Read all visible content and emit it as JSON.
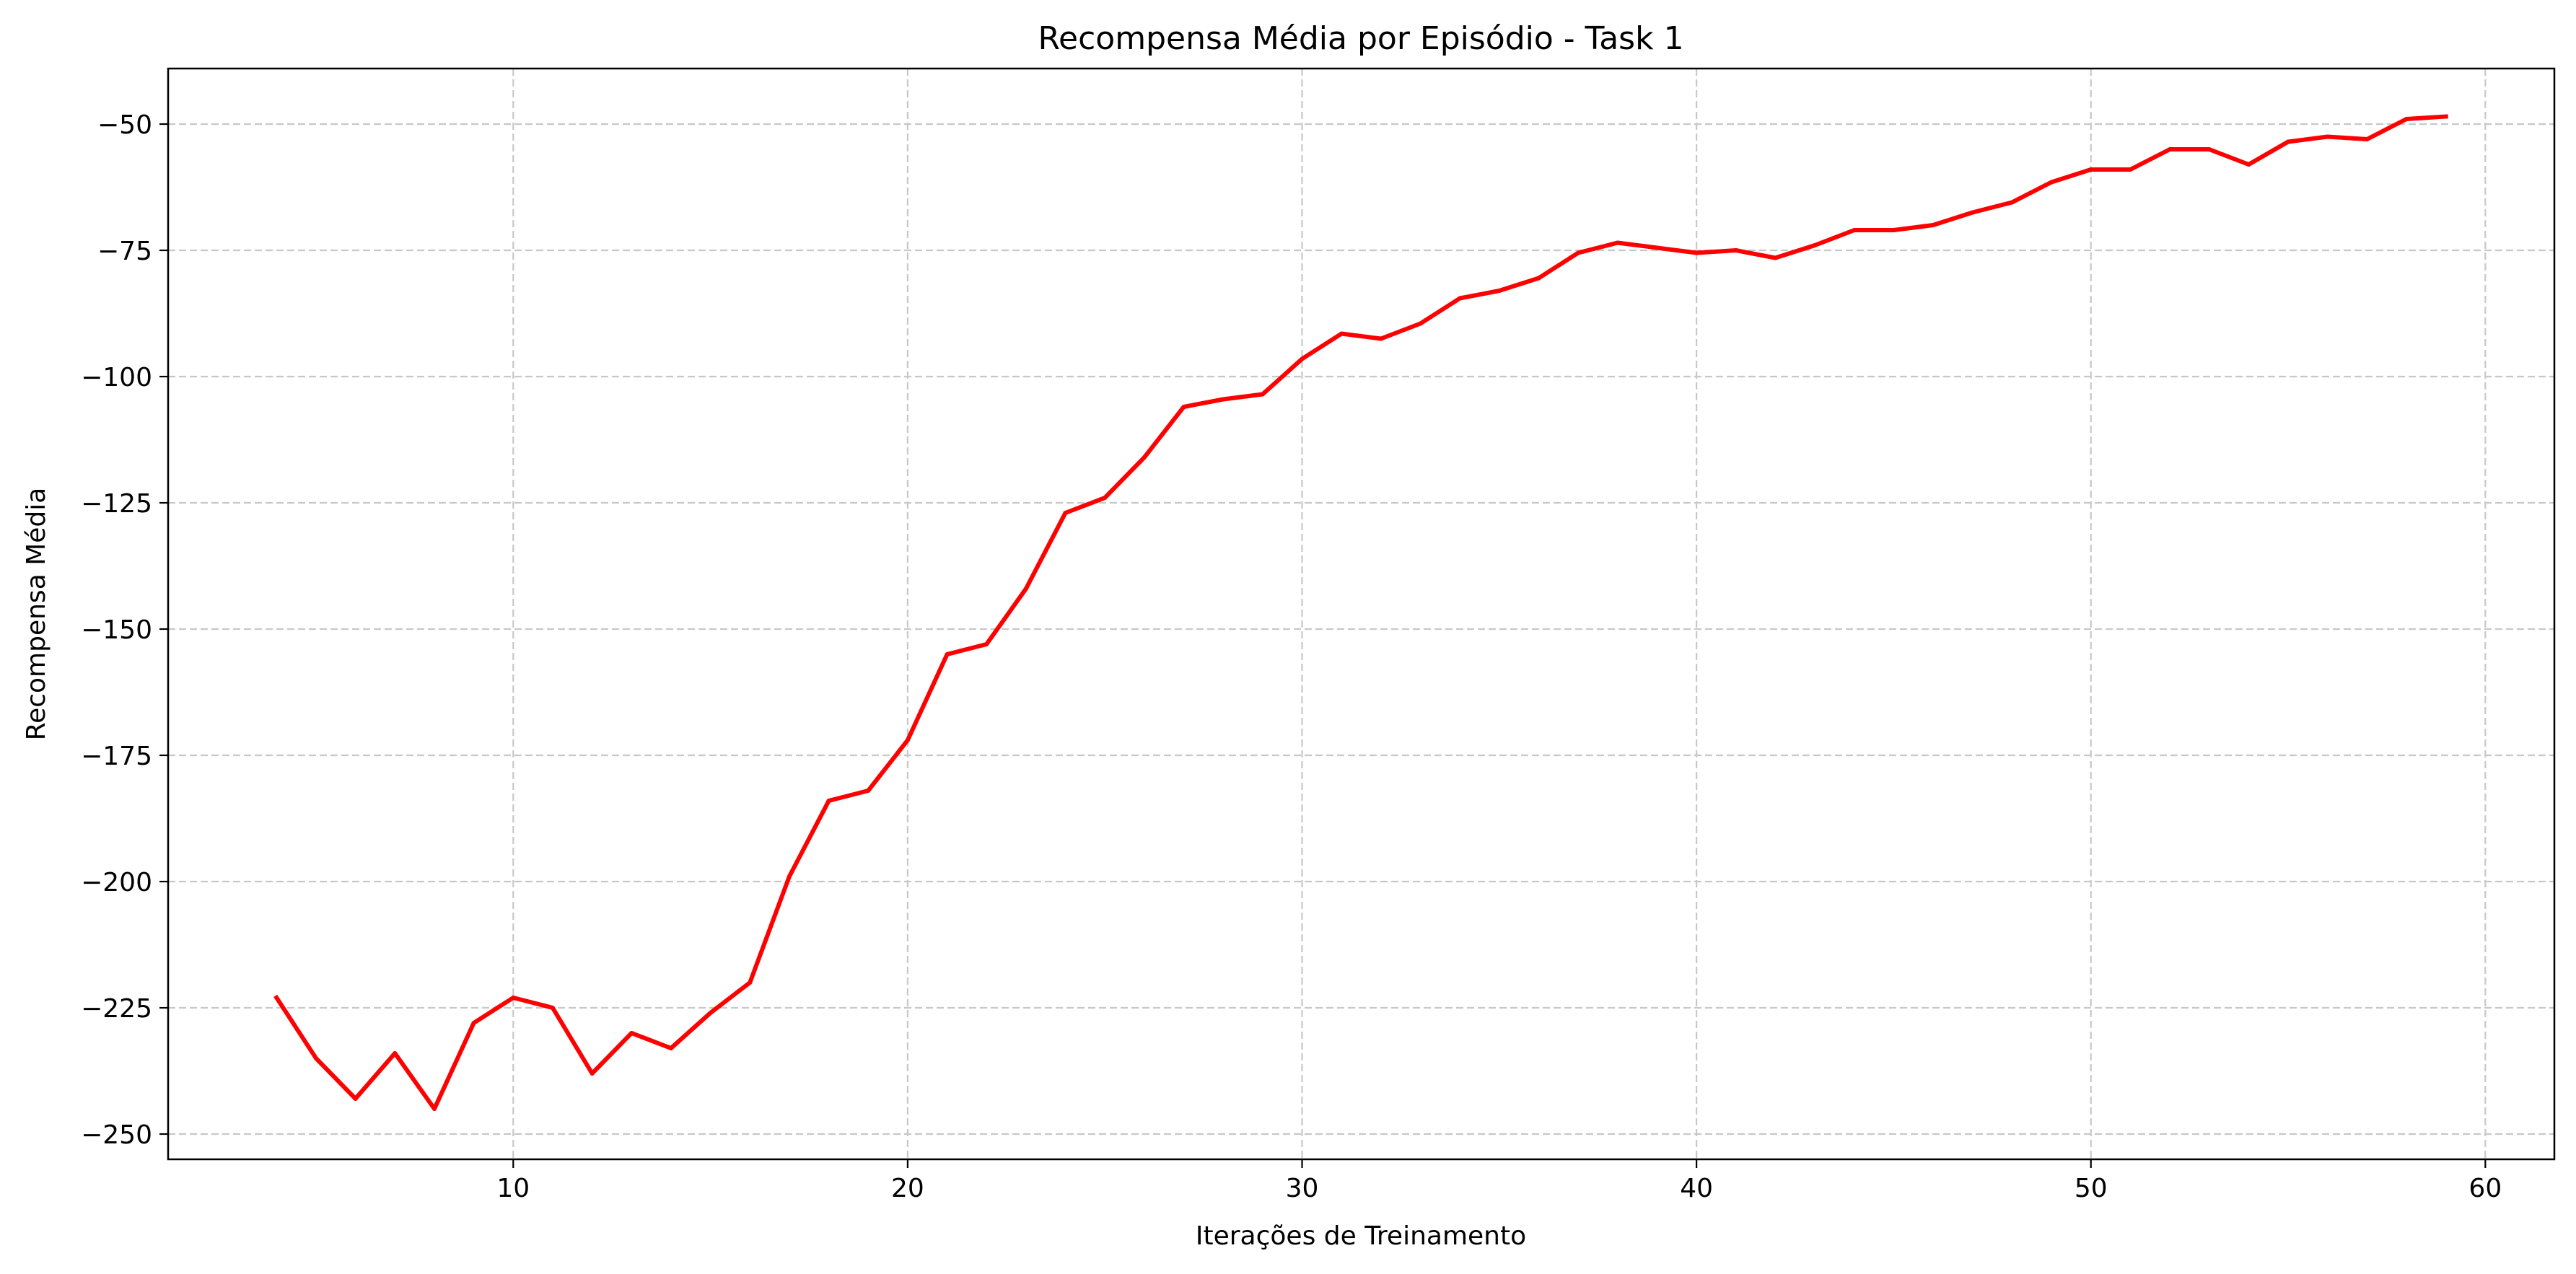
{
  "chart_data": {
    "type": "line",
    "title": "Recompensa Média por Episódio - Task 1",
    "xlabel": "Iterações de Treinamento",
    "ylabel": "Recompensa Média",
    "xlim": [
      1.25,
      61.75
    ],
    "ylim": [
      -255,
      -39
    ],
    "xticks": [
      10,
      20,
      30,
      40,
      50,
      60
    ],
    "yticks": [
      -50,
      -75,
      -100,
      -125,
      -150,
      -175,
      -200,
      -225,
      -250
    ],
    "xtick_labels": [
      "10",
      "20",
      "30",
      "40",
      "50",
      "60"
    ],
    "ytick_labels": [
      "−50",
      "−75",
      "−100",
      "−125",
      "−150",
      "−175",
      "−200",
      "−225",
      "−250"
    ],
    "grid": true,
    "series": [
      {
        "color": "#ff0000",
        "x": [
          4,
          5,
          6,
          7,
          8,
          9,
          10,
          11,
          12,
          13,
          14,
          15,
          16,
          17,
          18,
          19,
          20,
          21,
          22,
          23,
          24,
          25,
          26,
          27,
          28,
          29,
          30,
          31,
          32,
          33,
          34,
          35,
          36,
          37,
          38,
          39,
          40,
          41,
          42,
          43,
          44,
          45,
          46,
          47,
          48,
          49,
          50,
          51,
          52,
          53,
          54,
          55,
          56,
          57,
          58,
          59
        ],
        "y": [
          -223,
          -235,
          -243,
          -234,
          -245,
          -228,
          -223,
          -225,
          -238,
          -230,
          -233,
          -226,
          -220,
          -199,
          -184,
          -182,
          -172,
          -155,
          -153,
          -142,
          -127,
          -124,
          -116,
          -106,
          -104.5,
          -103.5,
          -96.5,
          -91.5,
          -92.5,
          -89.5,
          -84.5,
          -83,
          -80.5,
          -75.5,
          -73.5,
          -74.5,
          -75.5,
          -75,
          -76.5,
          -74,
          -71,
          -71,
          -70,
          -67.5,
          -65.5,
          -61.5,
          -59,
          -59,
          -55,
          -55,
          -58,
          -53.5,
          -52.5,
          -53,
          -49,
          -48.5
        ]
      }
    ]
  }
}
